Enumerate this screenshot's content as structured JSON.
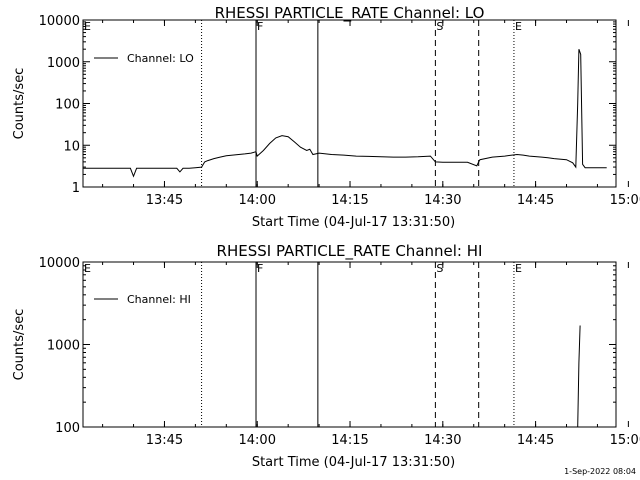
{
  "footer": {
    "timestamp": "1-Sep-2022 08:04"
  },
  "chart_data": [
    {
      "type": "line",
      "title": "RHESSI PARTICLE_RATE Channel: LO",
      "xlabel": "Start Time (04-Jul-17 13:31:50)",
      "ylabel": "Counts/sec",
      "yscale": "log",
      "ylim": [
        1,
        10000
      ],
      "ytick_labels": [
        "1",
        "10",
        "100",
        "1000",
        "10000"
      ],
      "xlim_min": [
        31.83,
        118.0
      ],
      "xtick_labels": [
        "13:45",
        "14:00",
        "14:15",
        "14:30",
        "14:45",
        "15:00"
      ],
      "legend": {
        "label": "Channel: LO",
        "placement": "top-left"
      },
      "grid": false,
      "markers": [
        {
          "label": "E",
          "x": 31.83,
          "style": "solid"
        },
        {
          "label": "",
          "x": 51.0,
          "style": "dotted"
        },
        {
          "label": "F",
          "x": 59.8,
          "style": "solid"
        },
        {
          "label": "",
          "x": 69.8,
          "style": "solid"
        },
        {
          "label": "S",
          "x": 88.8,
          "style": "dashed"
        },
        {
          "label": "",
          "x": 95.8,
          "style": "dashed"
        },
        {
          "label": "E",
          "x": 101.5,
          "style": "dotted"
        },
        {
          "label": "",
          "x": 118.0,
          "style": "dotted"
        }
      ],
      "series": [
        {
          "x": [
            31.83,
            34,
            36,
            38,
            39.5,
            40,
            40.5,
            41,
            44,
            47,
            47.5,
            48,
            49,
            50,
            51,
            51.5,
            52,
            53,
            54,
            55,
            56,
            57,
            58,
            59,
            59.8,
            60,
            61,
            62,
            63,
            64,
            65,
            66,
            67,
            68,
            68.5,
            69,
            70,
            72,
            74,
            76,
            78,
            80,
            82,
            84,
            86,
            88,
            88.8,
            90,
            92,
            94,
            95.5,
            95.8,
            96,
            98,
            100,
            102,
            103,
            104,
            106,
            107,
            108,
            110,
            111,
            111.5,
            111.8,
            112,
            112.3,
            112.6,
            113,
            114,
            116,
            116.5
          ],
          "values": [
            2.8,
            2.8,
            2.8,
            2.8,
            2.8,
            1.8,
            2.8,
            2.8,
            2.8,
            2.8,
            2.3,
            2.8,
            2.8,
            2.9,
            3.0,
            4.0,
            4.3,
            4.8,
            5.2,
            5.6,
            5.8,
            6.0,
            6.2,
            6.5,
            7.0,
            5.5,
            7.5,
            11,
            15,
            17,
            16,
            12,
            9,
            7.5,
            8,
            6,
            6.5,
            6,
            5.8,
            5.5,
            5.4,
            5.3,
            5.2,
            5.2,
            5.3,
            5.5,
            4.0,
            3.9,
            3.9,
            3.9,
            3.2,
            4.0,
            4.5,
            5.2,
            5.5,
            6.0,
            5.8,
            5.5,
            5.2,
            5.0,
            4.8,
            4.5,
            3.8,
            3.0,
            100,
            2000,
            1500,
            3.5,
            2.9,
            2.9,
            2.9,
            2.9
          ]
        }
      ]
    },
    {
      "type": "line",
      "title": "RHESSI PARTICLE_RATE Channel: HI",
      "xlabel": "Start Time (04-Jul-17 13:31:50)",
      "ylabel": "Counts/sec",
      "yscale": "log",
      "ylim": [
        100,
        10000
      ],
      "ytick_labels": [
        "100",
        "1000",
        "10000"
      ],
      "xlim_min": [
        31.83,
        118.0
      ],
      "xtick_labels": [
        "13:45",
        "14:00",
        "14:15",
        "14:30",
        "14:45",
        "15:00"
      ],
      "legend": {
        "label": "Channel: HI",
        "placement": "top-left"
      },
      "grid": false,
      "markers": [
        {
          "label": "E",
          "x": 31.83,
          "style": "solid"
        },
        {
          "label": "",
          "x": 51.0,
          "style": "dotted"
        },
        {
          "label": "F",
          "x": 59.8,
          "style": "solid"
        },
        {
          "label": "",
          "x": 69.8,
          "style": "solid"
        },
        {
          "label": "S",
          "x": 88.8,
          "style": "dashed"
        },
        {
          "label": "",
          "x": 95.8,
          "style": "dashed"
        },
        {
          "label": "E",
          "x": 101.5,
          "style": "dotted"
        },
        {
          "label": "",
          "x": 118.0,
          "style": "dotted"
        }
      ],
      "series": [
        {
          "x": [
            111.8,
            112.0,
            112.2
          ],
          "values": [
            100,
            600,
            1700
          ]
        }
      ]
    }
  ]
}
